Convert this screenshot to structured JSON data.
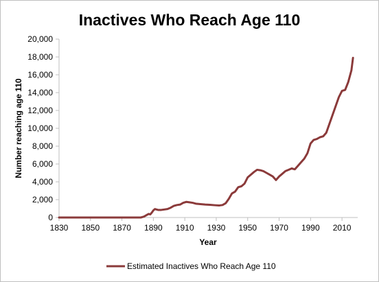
{
  "chart_data": {
    "type": "line",
    "title": "Inactives Who Reach Age 110",
    "xlabel": "Year",
    "ylabel": "Number reaching age 110",
    "xlim": [
      1830,
      2020
    ],
    "ylim": [
      0,
      20000
    ],
    "x_ticks": [
      1830,
      1850,
      1870,
      1890,
      1910,
      1930,
      1950,
      1970,
      1990,
      2010
    ],
    "y_ticks": [
      0,
      2000,
      4000,
      6000,
      8000,
      10000,
      12000,
      14000,
      16000,
      18000,
      20000
    ],
    "x_tick_labels": [
      "1830",
      "1850",
      "1870",
      "1890",
      "1910",
      "1930",
      "1950",
      "1970",
      "1990",
      "2010"
    ],
    "y_tick_labels": [
      "0",
      "2,000",
      "4,000",
      "6,000",
      "8,000",
      "10,000",
      "12,000",
      "14,000",
      "16,000",
      "18,000",
      "20,000"
    ],
    "grid": false,
    "legend_position": "bottom",
    "series": [
      {
        "name": "Estimated Inactives Who Reach Age 110",
        "color": "#8B3A3A",
        "x": [
          1830,
          1882,
          1884,
          1886,
          1887,
          1888,
          1889,
          1890,
          1891,
          1893,
          1895,
          1897,
          1899,
          1901,
          1903,
          1905,
          1907,
          1909,
          1911,
          1913,
          1915,
          1917,
          1920,
          1923,
          1926,
          1929,
          1932,
          1934,
          1936,
          1938,
          1940,
          1942,
          1944,
          1946,
          1948,
          1950,
          1952,
          1954,
          1956,
          1958,
          1960,
          1962,
          1964,
          1966,
          1968,
          1970,
          1972,
          1974,
          1976,
          1978,
          1980,
          1982,
          1984,
          1986,
          1988,
          1990,
          1992,
          1994,
          1996,
          1998,
          2000,
          2002,
          2004,
          2006,
          2008,
          2010,
          2012,
          2014,
          2016,
          2017
        ],
        "y": [
          0,
          0,
          100,
          300,
          400,
          350,
          550,
          800,
          950,
          850,
          850,
          900,
          950,
          1100,
          1300,
          1400,
          1450,
          1650,
          1750,
          1700,
          1650,
          1550,
          1500,
          1450,
          1420,
          1380,
          1350,
          1400,
          1600,
          2100,
          2700,
          2900,
          3400,
          3500,
          3800,
          4500,
          4800,
          5100,
          5350,
          5300,
          5200,
          5000,
          4800,
          4600,
          4200,
          4600,
          4900,
          5200,
          5350,
          5500,
          5400,
          5800,
          6200,
          6600,
          7200,
          8300,
          8700,
          8800,
          9000,
          9100,
          9500,
          10500,
          11500,
          12500,
          13500,
          14200,
          14300,
          15200,
          16500,
          17900
        ]
      }
    ]
  }
}
